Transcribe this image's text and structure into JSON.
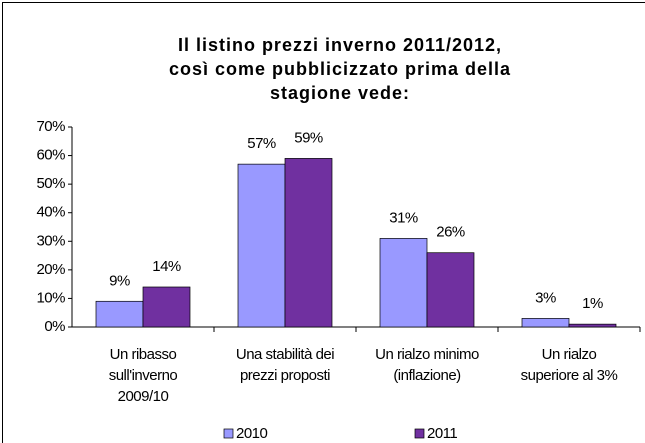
{
  "chart_data": {
    "type": "bar",
    "title": [
      "Il listino prezzi inverno 2011/2012,",
      "così come pubblicizzato prima della",
      "stagione vede:"
    ],
    "categories": [
      [
        "Un ribasso",
        "sull'inverno",
        "2009/10"
      ],
      [
        "Una stabilità dei",
        "prezzi proposti"
      ],
      [
        "Un rialzo minimo",
        "(inflazione)"
      ],
      [
        "Un rialzo",
        "superiore al 3%"
      ]
    ],
    "series": [
      {
        "name": "2010",
        "color": "#9999ff",
        "values": [
          9,
          57,
          31,
          3
        ],
        "value_labels": [
          "9%",
          "57%",
          "31%",
          "3%"
        ]
      },
      {
        "name": "2011",
        "color": "#7030a0",
        "values": [
          14,
          59,
          26,
          1
        ],
        "value_labels": [
          "14%",
          "59%",
          "26%",
          "1%"
        ]
      }
    ],
    "ylim": [
      0,
      70
    ],
    "yticks": [
      {
        "value": 0,
        "label": "0%"
      },
      {
        "value": 10,
        "label": "10%"
      },
      {
        "value": 20,
        "label": "20%"
      },
      {
        "value": 30,
        "label": "30%"
      },
      {
        "value": 40,
        "label": "40%"
      },
      {
        "value": 50,
        "label": "50%"
      },
      {
        "value": 60,
        "label": "60%"
      },
      {
        "value": 70,
        "label": "70%"
      }
    ],
    "legend": "bottom"
  }
}
